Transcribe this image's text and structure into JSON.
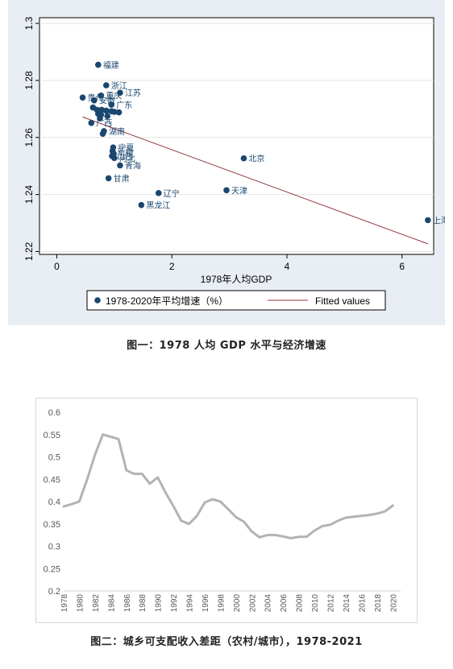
{
  "charts": {
    "scatter": {
      "caption": "图一：1978 人均 GDP 水平与经济增速",
      "chart_data": {
        "type": "scatter",
        "xlabel": "1978年人均GDP",
        "ylabel": "",
        "xlim": [
          -0.3,
          6.55
        ],
        "ylim": [
          1.219,
          1.302
        ],
        "xticks": [
          "0",
          "2",
          "4",
          "6"
        ],
        "xtick_values": [
          0,
          2,
          4,
          6
        ],
        "yticks": [
          "1.22",
          "1.24",
          "1.26",
          "1.28",
          "1.3"
        ],
        "ytick_values": [
          1.22,
          1.24,
          1.26,
          1.28,
          1.3
        ],
        "grid": true,
        "legend": {
          "position": "bottom",
          "labels": [
            "1978-2020年平均增速（%）",
            "Fitted values"
          ]
        },
        "series": [
          {
            "name": "1978-2020年平均增速（%）",
            "points": [
              {
                "label": "福建",
                "x": 0.72,
                "y": 1.2855
              },
              {
                "label": "浙江",
                "x": 0.86,
                "y": 1.2783
              },
              {
                "label": "江苏",
                "x": 1.1,
                "y": 1.2757
              },
              {
                "label": "重庆",
                "x": 0.77,
                "y": 1.2747
              },
              {
                "label": "贵州",
                "x": 0.45,
                "y": 1.274
              },
              {
                "label": "安徽",
                "x": 0.65,
                "y": 1.273
              },
              {
                "label": "广东",
                "x": 0.95,
                "y": 1.2715
              },
              {
                "label": "",
                "x": 0.63,
                "y": 1.2705
              },
              {
                "label": "",
                "x": 0.7,
                "y": 1.2697
              },
              {
                "label": "",
                "x": 0.78,
                "y": 1.2697
              },
              {
                "label": "",
                "x": 0.86,
                "y": 1.2694
              },
              {
                "label": "",
                "x": 0.95,
                "y": 1.2692
              },
              {
                "label": "",
                "x": 1.0,
                "y": 1.269
              },
              {
                "label": "",
                "x": 1.08,
                "y": 1.2688
              },
              {
                "label": "",
                "x": 0.72,
                "y": 1.2683
              },
              {
                "label": "",
                "x": 0.77,
                "y": 1.268
              },
              {
                "label": "",
                "x": 0.88,
                "y": 1.2675
              },
              {
                "label": "",
                "x": 0.75,
                "y": 1.2667
              },
              {
                "label": "广西",
                "x": 0.6,
                "y": 1.2651
              },
              {
                "label": "湖南",
                "x": 0.82,
                "y": 1.2622
              },
              {
                "label": "",
                "x": 0.8,
                "y": 1.2613
              },
              {
                "label": "宁夏",
                "x": 0.98,
                "y": 1.2565
              },
              {
                "label": "新疆",
                "x": 0.97,
                "y": 1.2552
              },
              {
                "label": "",
                "x": 0.99,
                "y": 1.2543
              },
              {
                "label": "山西",
                "x": 0.96,
                "y": 1.2535
              },
              {
                "label": "河北",
                "x": 1.0,
                "y": 1.2528
              },
              {
                "label": "北京",
                "x": 3.25,
                "y": 1.2527
              },
              {
                "label": "青海",
                "x": 1.1,
                "y": 1.2502
              },
              {
                "label": "甘肃",
                "x": 0.9,
                "y": 1.2457
              },
              {
                "label": "天津",
                "x": 2.95,
                "y": 1.2415
              },
              {
                "label": "辽宁",
                "x": 1.77,
                "y": 1.2405
              },
              {
                "label": "黑龙江",
                "x": 1.47,
                "y": 1.2363
              },
              {
                "label": "上海",
                "x": 6.45,
                "y": 1.231
              }
            ]
          },
          {
            "name": "Fitted values",
            "type": "line",
            "x": [
              0.45,
              6.45
            ],
            "y": [
              1.2672,
              1.2227
            ]
          }
        ]
      }
    },
    "line": {
      "caption": "图二：城乡可支配收入差距（农村/城市），1978-2021",
      "chart_data": {
        "type": "line",
        "title": "",
        "xlabel": "",
        "ylabel": "",
        "ylim": [
          0.2,
          0.6
        ],
        "yticks": [
          "0.2",
          "0.25",
          "0.3",
          "0.35",
          "0.4",
          "0.45",
          "0.5",
          "0.55",
          "0.6"
        ],
        "ytick_values": [
          0.2,
          0.25,
          0.3,
          0.35,
          0.4,
          0.45,
          0.5,
          0.55,
          0.6
        ],
        "grid": false,
        "color": "#b3b3b3",
        "x": [
          1978,
          1979,
          1980,
          1981,
          1982,
          1983,
          1984,
          1985,
          1986,
          1987,
          1988,
          1989,
          1990,
          1991,
          1992,
          1993,
          1994,
          1995,
          1996,
          1997,
          1998,
          1999,
          2000,
          2001,
          2002,
          2003,
          2004,
          2005,
          2006,
          2007,
          2008,
          2009,
          2010,
          2011,
          2012,
          2013,
          2014,
          2015,
          2016,
          2017,
          2018,
          2019,
          2020,
          2021
        ],
        "xticks": [
          "1978",
          "1980",
          "1982",
          "1984",
          "1986",
          "1988",
          "1990",
          "1992",
          "1994",
          "1996",
          "1998",
          "2000",
          "2002",
          "2004",
          "2006",
          "2008",
          "2010",
          "2012",
          "2014",
          "2016",
          "2018",
          "2020"
        ],
        "series": [
          {
            "name": "",
            "values": [
              0.389,
              0.394,
              0.4,
              0.45,
              0.505,
              0.55,
              0.545,
              0.54,
              0.47,
              0.462,
              0.462,
              0.44,
              0.454,
              0.42,
              0.39,
              0.357,
              0.35,
              0.368,
              0.398,
              0.405,
              0.4,
              0.383,
              0.365,
              0.355,
              0.333,
              0.32,
              0.325,
              0.325,
              0.322,
              0.318,
              0.321,
              0.321,
              0.335,
              0.345,
              0.348,
              0.357,
              0.364,
              0.366,
              0.368,
              0.37,
              0.373,
              0.378,
              0.391,
              null
            ]
          }
        ]
      }
    }
  },
  "colors": {
    "marker": "#1a476f",
    "fit_line": "#90353b",
    "line_series": "#b3b3b3",
    "plot_bg": "#ffffff",
    "outer_bg": "#e8eef4"
  }
}
